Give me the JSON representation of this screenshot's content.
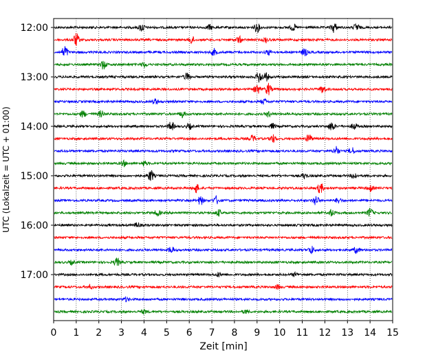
{
  "chart_data": {
    "type": "line",
    "title": "",
    "xlabel": "Zeit  [min]",
    "ylabel": "UTC (Lokalzeit = UTC + 01:00)",
    "xlim": [
      0,
      15
    ],
    "x_ticks": [
      "0",
      "1",
      "2",
      "3",
      "4",
      "5",
      "6",
      "7",
      "8",
      "9",
      "10",
      "11",
      "12",
      "13",
      "14",
      "15"
    ],
    "y_tick_labels": [
      "12:00",
      "13:00",
      "14:00",
      "15:00",
      "16:00",
      "17:00"
    ],
    "grid": "vertical dotted lines at each minute",
    "trace_colors": [
      "#000000",
      "#ff0000",
      "#0000ff",
      "#008000"
    ],
    "series": [
      {
        "start": "12:00",
        "color": "#000000",
        "bursts": [
          [
            3.9,
            0.6
          ],
          [
            6.9,
            0.4
          ],
          [
            9.0,
            0.7
          ],
          [
            10.6,
            0.5
          ],
          [
            12.4,
            0.8
          ],
          [
            13.4,
            0.6
          ]
        ]
      },
      {
        "start": "12:15",
        "color": "#ff0000",
        "bursts": [
          [
            1.0,
            1.0
          ],
          [
            6.1,
            0.6
          ],
          [
            8.2,
            0.5
          ],
          [
            9.4,
            0.4
          ]
        ]
      },
      {
        "start": "12:30",
        "color": "#0000ff",
        "bursts": [
          [
            0.5,
            1.0
          ],
          [
            7.1,
            0.5
          ],
          [
            9.5,
            0.4
          ],
          [
            11.1,
            0.6
          ]
        ]
      },
      {
        "start": "12:45",
        "color": "#008000",
        "bursts": [
          [
            2.2,
            0.7
          ],
          [
            4.0,
            0.4
          ]
        ]
      },
      {
        "start": "13:00",
        "color": "#000000",
        "bursts": [
          [
            5.9,
            0.6
          ],
          [
            9.1,
            0.9
          ],
          [
            9.4,
            0.6
          ]
        ]
      },
      {
        "start": "13:15",
        "color": "#ff0000",
        "bursts": [
          [
            9.0,
            0.8
          ],
          [
            9.5,
            0.9
          ],
          [
            11.9,
            0.6
          ]
        ]
      },
      {
        "start": "13:30",
        "color": "#0000ff",
        "bursts": [
          [
            4.5,
            0.4
          ],
          [
            9.3,
            0.4
          ]
        ]
      },
      {
        "start": "13:45",
        "color": "#008000",
        "bursts": [
          [
            1.3,
            0.5
          ],
          [
            2.1,
            0.5
          ],
          [
            5.7,
            0.5
          ],
          [
            9.5,
            0.4
          ]
        ]
      },
      {
        "start": "14:00",
        "color": "#000000",
        "bursts": [
          [
            5.2,
            0.7
          ],
          [
            6.0,
            0.4
          ],
          [
            9.7,
            0.4
          ],
          [
            12.3,
            0.7
          ],
          [
            13.3,
            0.5
          ]
        ]
      },
      {
        "start": "14:15",
        "color": "#ff0000",
        "bursts": [
          [
            8.8,
            0.5
          ],
          [
            9.7,
            0.6
          ],
          [
            11.3,
            0.7
          ]
        ]
      },
      {
        "start": "14:30",
        "color": "#0000ff",
        "bursts": [
          [
            12.5,
            0.7
          ],
          [
            13.2,
            0.5
          ]
        ]
      },
      {
        "start": "14:45",
        "color": "#008000",
        "bursts": [
          [
            3.1,
            0.4
          ],
          [
            4.0,
            0.4
          ]
        ]
      },
      {
        "start": "15:00",
        "color": "#000000",
        "bursts": [
          [
            4.3,
            0.9
          ],
          [
            11.1,
            0.4
          ],
          [
            13.3,
            0.5
          ]
        ]
      },
      {
        "start": "15:15",
        "color": "#ff0000",
        "bursts": [
          [
            6.3,
            0.7
          ],
          [
            11.8,
            0.8
          ],
          [
            14.0,
            0.5
          ]
        ]
      },
      {
        "start": "15:30",
        "color": "#0000ff",
        "bursts": [
          [
            6.5,
            0.7
          ],
          [
            7.2,
            0.6
          ],
          [
            11.6,
            0.8
          ],
          [
            12.6,
            0.4
          ]
        ]
      },
      {
        "start": "15:45",
        "color": "#008000",
        "bursts": [
          [
            4.6,
            0.5
          ],
          [
            7.3,
            0.5
          ],
          [
            12.3,
            0.5
          ],
          [
            14.0,
            0.7
          ]
        ]
      },
      {
        "start": "16:00",
        "color": "#000000",
        "bursts": [
          [
            3.7,
            0.4
          ]
        ]
      },
      {
        "start": "16:15",
        "color": "#ff0000",
        "bursts": []
      },
      {
        "start": "16:30",
        "color": "#0000ff",
        "bursts": [
          [
            5.2,
            0.5
          ],
          [
            11.4,
            0.6
          ],
          [
            13.4,
            0.5
          ]
        ]
      },
      {
        "start": "16:45",
        "color": "#008000",
        "bursts": [
          [
            2.8,
            0.6
          ],
          [
            0.8,
            0.3
          ]
        ]
      },
      {
        "start": "17:00",
        "color": "#000000",
        "bursts": [
          [
            7.3,
            0.3
          ],
          [
            10.7,
            0.3
          ]
        ]
      },
      {
        "start": "17:15",
        "color": "#ff0000",
        "bursts": [
          [
            1.6,
            0.3
          ],
          [
            9.9,
            0.3
          ]
        ]
      },
      {
        "start": "17:30",
        "color": "#0000ff",
        "bursts": [
          [
            3.2,
            0.3
          ]
        ]
      },
      {
        "start": "17:45",
        "color": "#008000",
        "bursts": [
          [
            4.0,
            0.3
          ],
          [
            8.5,
            0.3
          ]
        ]
      }
    ]
  }
}
